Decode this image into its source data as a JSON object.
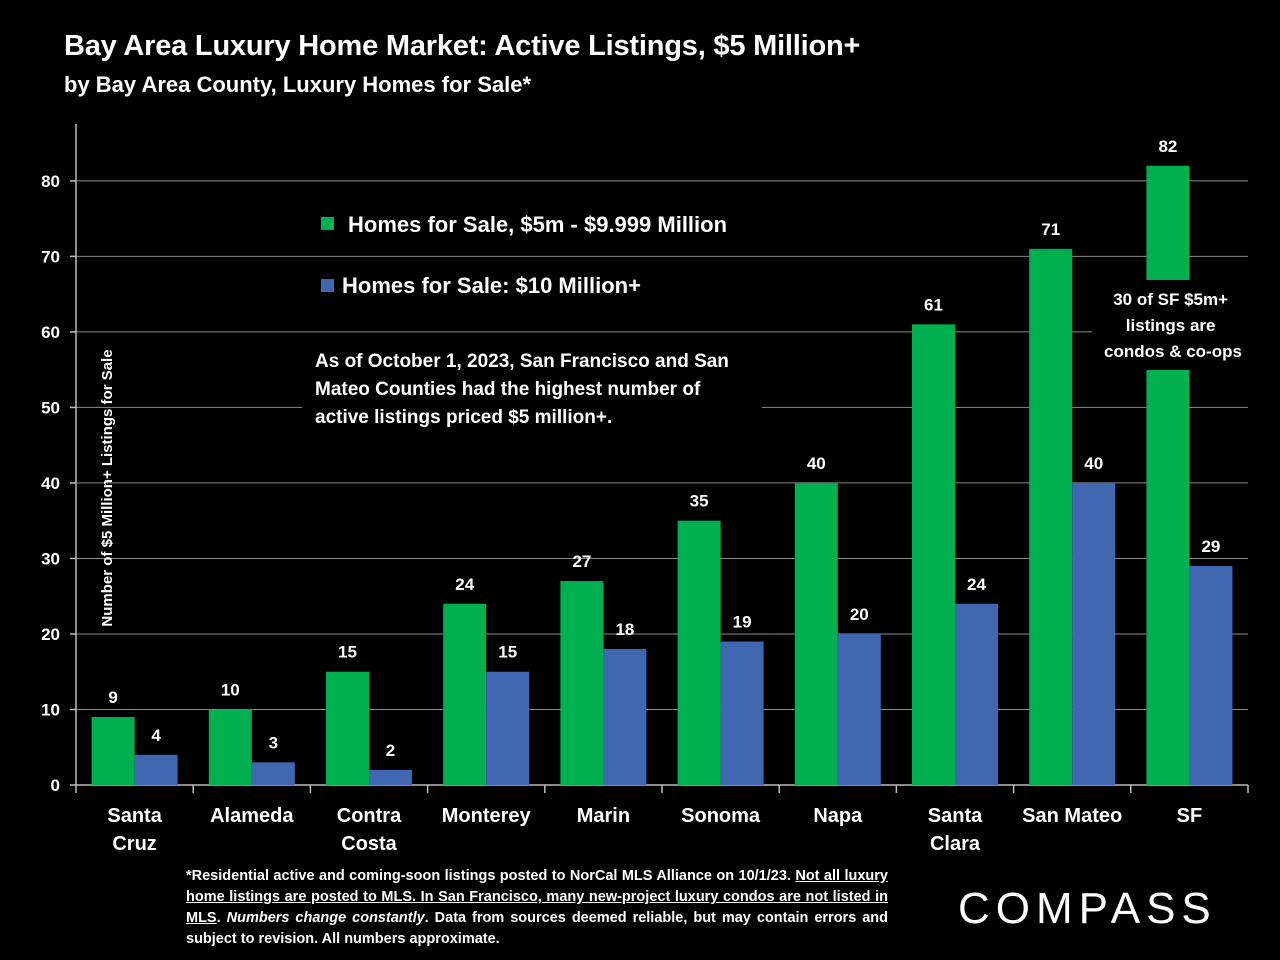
{
  "header": {
    "title": "Bay Area Luxury Home Market: Active Listings, $5 Million+",
    "subtitle": "by Bay Area County, Luxury Homes for Sale*"
  },
  "annotations": {
    "main": [
      "As of October 1, 2023, San Francisco and San",
      "Mateo Counties had the highest number of",
      "active listings priced $5 million+."
    ],
    "sf_note": [
      "30 of SF $5m+",
      "listings are",
      "condos & co-ops"
    ]
  },
  "footnote": {
    "part1": "*Residential active and coming-soon listings posted to NorCal MLS Alliance on 10/1/23. ",
    "part2_underlined": "Not all luxury home listings are posted to MLS. In San Francisco, many new-project luxury condos are not listed in MLS",
    "part3": ". ",
    "part4_italic": "Numbers change constantly",
    "part5": ". Data from sources deemed reliable, but may contain errors and subject to revision. All numbers approximate."
  },
  "logo": {
    "text": "COMPASS"
  },
  "colors": {
    "green": "#00B050",
    "blue": "#4068B0",
    "background": "#000000",
    "text": "#FFFFFF"
  },
  "chart_data": {
    "type": "bar",
    "ylabel": "Number of $5 Million+ Listings for Sale",
    "xlabel": "",
    "ylim": [
      0,
      87
    ],
    "yticks": [
      0,
      10,
      20,
      30,
      40,
      50,
      60,
      70,
      80
    ],
    "grid": true,
    "legend": "top-left",
    "categories": [
      [
        "Santa",
        "Cruz"
      ],
      [
        "Alameda"
      ],
      [
        "Contra",
        "Costa"
      ],
      [
        "Monterey"
      ],
      [
        "Marin"
      ],
      [
        "Sonoma"
      ],
      [
        "Napa"
      ],
      [
        "Santa",
        "Clara"
      ],
      [
        "San Mateo"
      ],
      [
        "SF"
      ]
    ],
    "series": [
      {
        "name": "Homes for Sale, $5m - $9.999 Million",
        "color": "#00B050",
        "values": [
          9,
          10,
          15,
          24,
          27,
          35,
          40,
          61,
          71,
          82
        ]
      },
      {
        "name": "Homes for Sale:  $10 Million+",
        "color": "#4068B0",
        "values": [
          4,
          3,
          2,
          15,
          18,
          19,
          20,
          24,
          40,
          29
        ]
      }
    ]
  }
}
